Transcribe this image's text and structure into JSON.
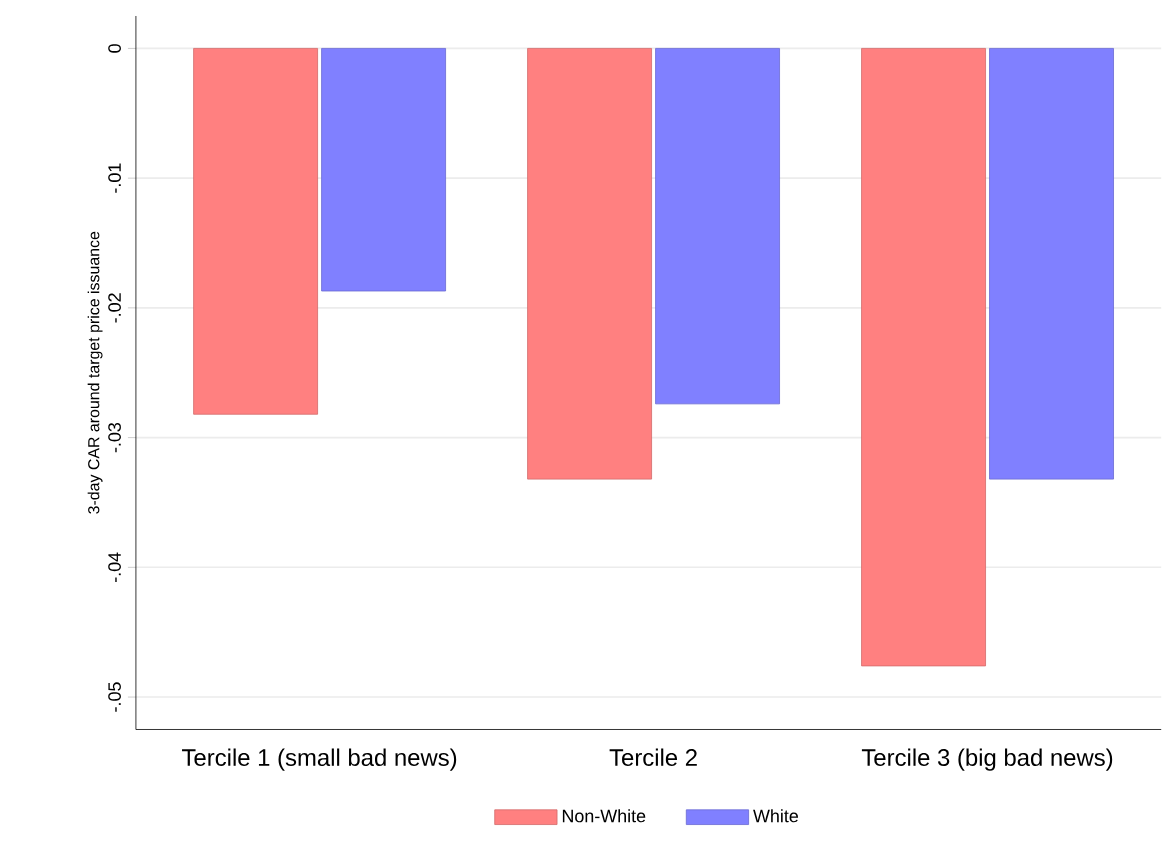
{
  "chart_data": {
    "type": "bar",
    "ylabel": "3-day CAR around target price issuance",
    "categories": [
      "Tercile 1 (small bad news)",
      "Tercile 2",
      "Tercile 3 (big bad news)"
    ],
    "series": [
      {
        "name": "Non-White",
        "color": "#ff8080",
        "values": [
          -0.0282,
          -0.0332,
          -0.0476
        ]
      },
      {
        "name": "White",
        "color": "#8080ff",
        "values": [
          -0.0187,
          -0.0274,
          -0.0332
        ]
      }
    ],
    "ylim": [
      -0.0525,
      0.0025
    ],
    "yticks": [
      {
        "value": -0.05,
        "label": "-.05"
      },
      {
        "value": -0.04,
        "label": "-.04"
      },
      {
        "value": -0.03,
        "label": "-.03"
      },
      {
        "value": -0.02,
        "label": "-.02"
      },
      {
        "value": -0.01,
        "label": "-.01"
      },
      {
        "value": 0,
        "label": "0"
      }
    ],
    "grid": "y",
    "legend": "bottom"
  }
}
